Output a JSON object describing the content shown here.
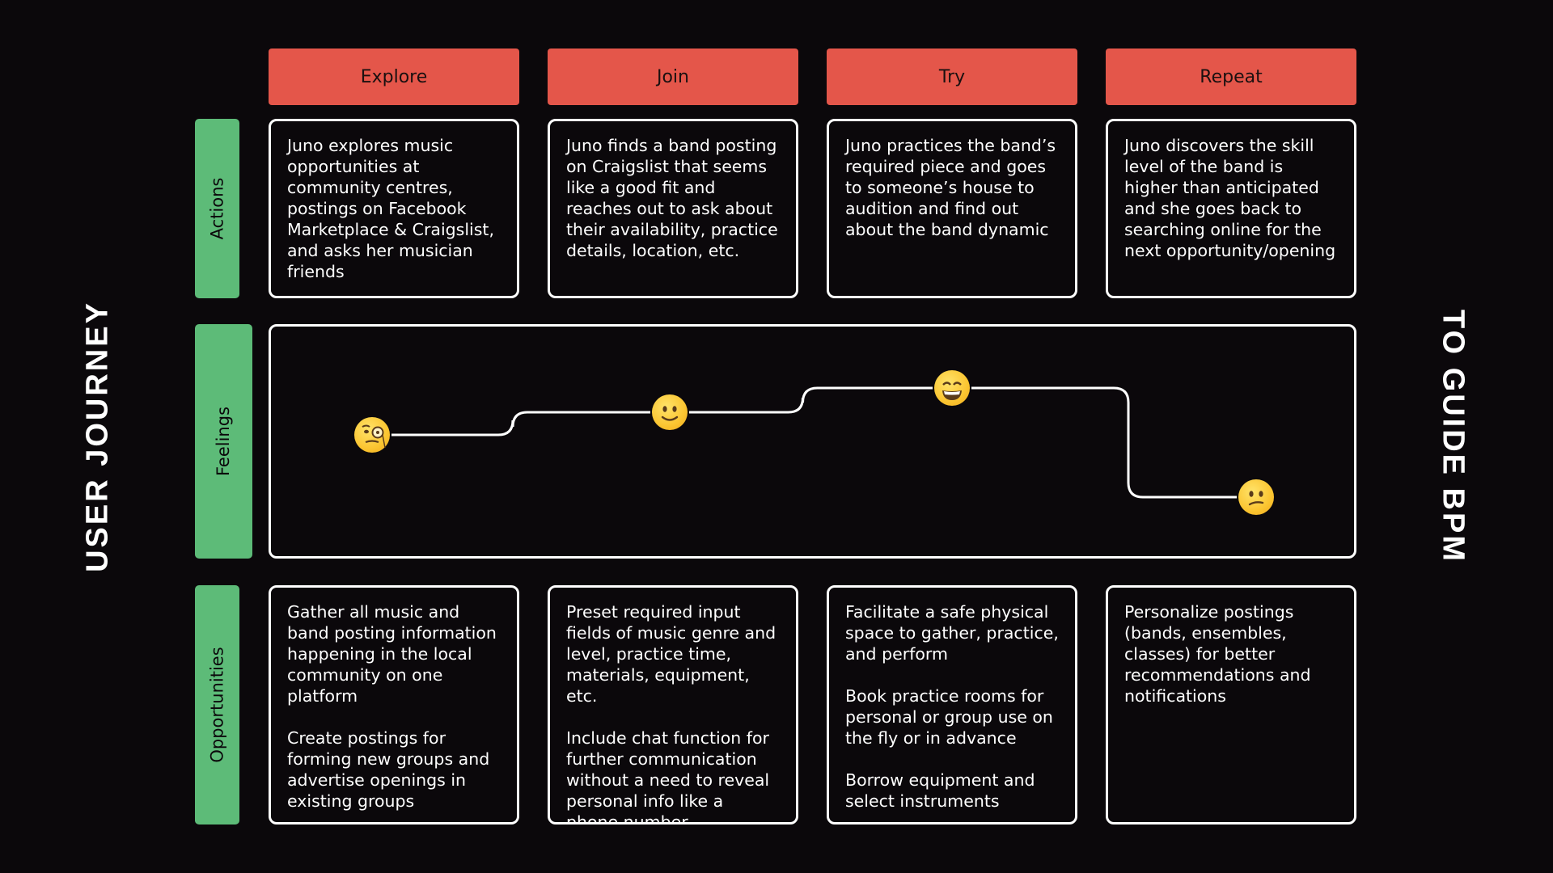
{
  "titles": {
    "left": "USER JOURNEY",
    "right": "TO GUIDE BPM"
  },
  "stages": [
    "Explore",
    "Join",
    "Try",
    "Repeat"
  ],
  "row_labels": {
    "actions": "Actions",
    "feelings": "Feelings",
    "opportunities": "Opportunities"
  },
  "actions": [
    "Juno explores music opportunities at community centres, postings on Facebook Marketplace & Craigslist, and asks her musician friends",
    "Juno finds a band posting on Craigslist that seems like a good fit and reaches out to ask about their availability, practice details, location, etc.",
    "Juno practices the band’s required piece and goes to someone’s house to audition and find out about the band dynamic",
    "Juno discovers the skill level of the band is higher than anticipated and she goes back to searching online for the next opportunity/opening"
  ],
  "opportunities": [
    "Gather all music and band posting information happening in the local community on one platform\n\nCreate postings for forming new groups and advertise openings in existing groups",
    "Preset required input fields of music genre and level, practice time, materials, equipment, etc.\n\nInclude chat function for further communication without a need to reveal personal info like a phone number",
    "Facilitate a safe physical space to gather, practice, and perform\n\nBook practice rooms for personal or group use on the fly or in advance\n\nBorrow equipment and select instruments",
    "Personalize postings (bands, ensembles, classes) for better recommendations and notifications"
  ],
  "feelings": [
    {
      "stage": "Explore",
      "icon": "monocle-face-icon",
      "level": 1
    },
    {
      "stage": "Join",
      "icon": "slightly-smiling-face-icon",
      "level": 2
    },
    {
      "stage": "Try",
      "icon": "grinning-face-icon",
      "level": 3
    },
    {
      "stage": "Repeat",
      "icon": "confused-face-icon",
      "level": 0
    }
  ],
  "colors": {
    "background": "#0b080b",
    "stage": "#e4564a",
    "row_label": "#5dbb78",
    "line": "#ffffff"
  }
}
